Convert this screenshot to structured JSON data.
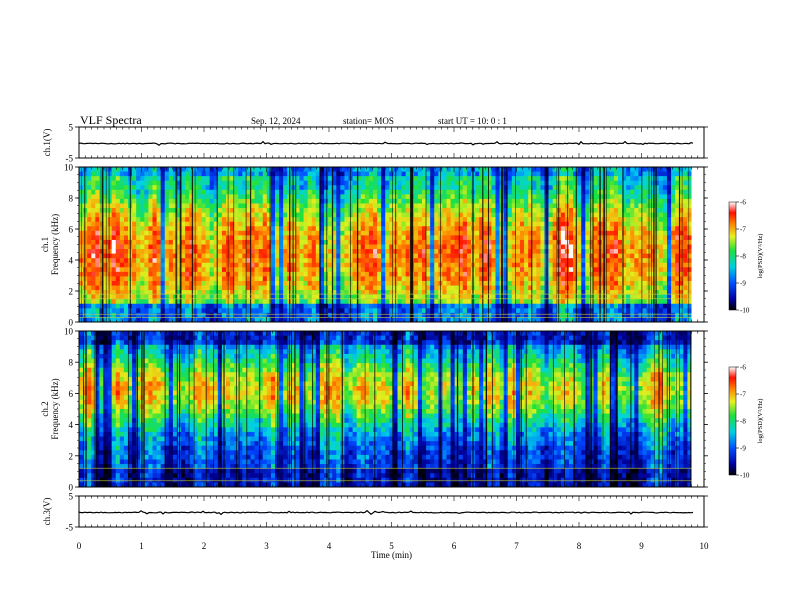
{
  "header": {
    "title": "VLF Spectra",
    "date": "Sep. 12, 2024",
    "station": "station= MOS",
    "start": "start  UT =   10: 0   : 1"
  },
  "chart_data": {
    "type": "heatmap",
    "title": "VLF Spectra",
    "x": {
      "label": "Time  (min)",
      "range": [
        0,
        10
      ],
      "ticks": [
        "0",
        "1",
        "2",
        "3",
        "4",
        "5",
        "6",
        "7",
        "8",
        "9",
        "10"
      ]
    },
    "panels": [
      {
        "id": "ch1-waveform",
        "type": "line",
        "ylabel": "ch.1(V)",
        "ylim": [
          -5,
          5
        ],
        "yticks": [
          "5",
          "-5"
        ],
        "baseline": 0
      },
      {
        "id": "ch1-spectrogram",
        "type": "heatmap",
        "ylabel": "ch.1",
        "ylabel2": "Frequency  (kHz)",
        "ylim": [
          0,
          10
        ],
        "yticks": [
          "0",
          "2",
          "4",
          "6",
          "8",
          "10"
        ],
        "colorbar": {
          "label": "log(PSD)(V²/Hz)",
          "range": [
            -10,
            -6
          ],
          "ticks": [
            "-6",
            "-7",
            "-8",
            "-9",
            "-10"
          ]
        }
      },
      {
        "id": "ch2-spectrogram",
        "type": "heatmap",
        "ylabel": "ch.2",
        "ylabel2": "Frequency  (kHz)",
        "ylim": [
          0,
          10
        ],
        "yticks": [
          "0",
          "2",
          "4",
          "6",
          "8",
          "10"
        ],
        "colorbar": {
          "label": "log(PSD)(V²/Hz)",
          "range": [
            -10,
            -6
          ],
          "ticks": [
            "-6",
            "-7",
            "-8",
            "-9",
            "-10"
          ]
        }
      },
      {
        "id": "ch3-waveform",
        "type": "line",
        "ylabel": "ch.3(V)",
        "ylim": [
          -5,
          5
        ],
        "yticks": [
          "5",
          "-5"
        ],
        "baseline": 0
      }
    ],
    "colormap": [
      "#000090",
      "#0040ff",
      "#00c0ff",
      "#20e060",
      "#e0ff20",
      "#ff9000",
      "#ff1000",
      "#ffffff"
    ],
    "data_end_min": 9.8
  }
}
